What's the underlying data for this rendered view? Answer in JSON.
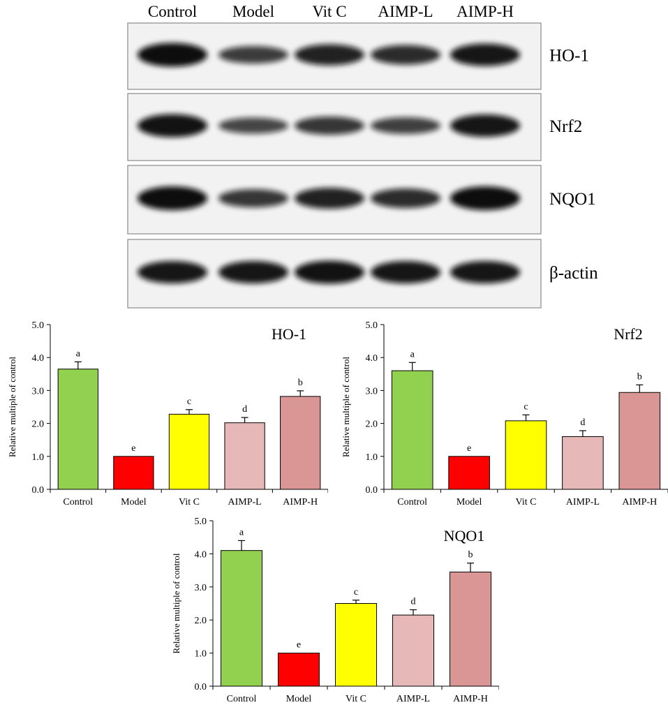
{
  "blot": {
    "lanes": [
      "Control",
      "Model",
      "Vit C",
      "AIMP-L",
      "AIMP-H"
    ],
    "rows": [
      {
        "label": "HO-1",
        "intensity": [
          1.0,
          0.55,
          0.8,
          0.7,
          0.9
        ]
      },
      {
        "label": "Nrf2",
        "intensity": [
          0.95,
          0.45,
          0.6,
          0.5,
          0.9
        ]
      },
      {
        "label": "NQO1",
        "intensity": [
          1.0,
          0.6,
          0.8,
          0.7,
          1.0
        ]
      },
      {
        "label": "β-actin",
        "intensity": [
          0.9,
          0.9,
          0.95,
          0.9,
          0.9
        ]
      }
    ]
  },
  "colors": {
    "Control": "#92d050",
    "Model": "#ff0000",
    "Vit C": "#ffff00",
    "AIMP-L": "#e6b8b7",
    "AIMP-H": "#da9694"
  },
  "chart_data": [
    {
      "type": "bar",
      "title": "HO-1",
      "ylabel": "Relative multiple of control",
      "xlabel": "",
      "categories": [
        "Control",
        "Model",
        "Vit C",
        "AIMP-L",
        "AIMP-H"
      ],
      "values": [
        3.65,
        1.0,
        2.28,
        2.02,
        2.82
      ],
      "errors": [
        0.22,
        0.0,
        0.14,
        0.16,
        0.17
      ],
      "letters": [
        "a",
        "e",
        "c",
        "d",
        "b"
      ],
      "ylim": [
        0,
        5
      ],
      "yticks": [
        "0.0",
        "1.0",
        "2.0",
        "3.0",
        "4.0",
        "5.0"
      ]
    },
    {
      "type": "bar",
      "title": "Nrf2",
      "ylabel": "Relative multiple of control",
      "xlabel": "",
      "categories": [
        "Control",
        "Model",
        "Vit C",
        "AIMP-L",
        "AIMP-H"
      ],
      "values": [
        3.6,
        1.0,
        2.08,
        1.6,
        2.94
      ],
      "errors": [
        0.25,
        0.0,
        0.18,
        0.18,
        0.23
      ],
      "letters": [
        "a",
        "e",
        "c",
        "d",
        "b"
      ],
      "ylim": [
        0,
        5
      ],
      "yticks": [
        "0.0",
        "1.0",
        "2.0",
        "3.0",
        "4.0",
        "5.0"
      ]
    },
    {
      "type": "bar",
      "title": "NQO1",
      "ylabel": "Relative multiple of control",
      "xlabel": "",
      "categories": [
        "Control",
        "Model",
        "Vit C",
        "AIMP-L",
        "AIMP-H"
      ],
      "values": [
        4.1,
        1.0,
        2.5,
        2.15,
        3.45
      ],
      "errors": [
        0.3,
        0.0,
        0.1,
        0.16,
        0.27
      ],
      "letters": [
        "a",
        "e",
        "c",
        "d",
        "b"
      ],
      "ylim": [
        0,
        5
      ],
      "yticks": [
        "0.0",
        "1.0",
        "2.0",
        "3.0",
        "4.0",
        "5.0"
      ]
    }
  ]
}
